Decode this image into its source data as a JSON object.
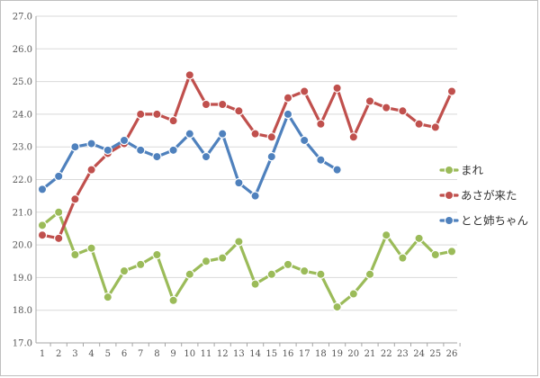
{
  "chart_data": {
    "type": "line",
    "title": "",
    "xlabel": "",
    "ylabel": "",
    "ylim": [
      17.0,
      27.0
    ],
    "yticks": [
      "17.0",
      "18.0",
      "19.0",
      "20.0",
      "21.0",
      "22.0",
      "23.0",
      "24.0",
      "25.0",
      "26.0",
      "27.0"
    ],
    "x": [
      1,
      2,
      3,
      4,
      5,
      6,
      7,
      8,
      9,
      10,
      11,
      12,
      13,
      14,
      15,
      16,
      17,
      18,
      19,
      20,
      21,
      22,
      23,
      24,
      25,
      26
    ],
    "grid": true,
    "legend_position": "right",
    "series": [
      {
        "name": "まれ",
        "color": "#9bbb59",
        "values": [
          20.6,
          21.0,
          19.7,
          19.9,
          18.4,
          19.2,
          19.4,
          19.7,
          18.3,
          19.1,
          19.5,
          19.6,
          20.1,
          18.8,
          19.1,
          19.4,
          19.2,
          19.1,
          18.1,
          18.5,
          19.1,
          20.3,
          19.6,
          20.2,
          19.7,
          19.8
        ]
      },
      {
        "name": "あさが来た",
        "color": "#c0504d",
        "values": [
          20.3,
          20.2,
          21.4,
          22.3,
          22.8,
          23.1,
          24.0,
          24.0,
          23.8,
          25.2,
          24.3,
          24.3,
          24.1,
          23.4,
          23.3,
          24.5,
          24.7,
          23.7,
          24.8,
          23.3,
          24.4,
          24.2,
          24.1,
          23.7,
          23.6,
          24.7
        ]
      },
      {
        "name": "とと姉ちゃん",
        "color": "#4f81bd",
        "values": [
          21.7,
          22.1,
          23.0,
          23.1,
          22.9,
          23.2,
          22.9,
          22.7,
          22.9,
          23.4,
          22.7,
          23.4,
          21.9,
          21.5,
          22.7,
          24.0,
          23.2,
          22.6,
          22.3,
          null,
          null,
          null,
          null,
          null,
          null,
          null
        ]
      }
    ]
  }
}
